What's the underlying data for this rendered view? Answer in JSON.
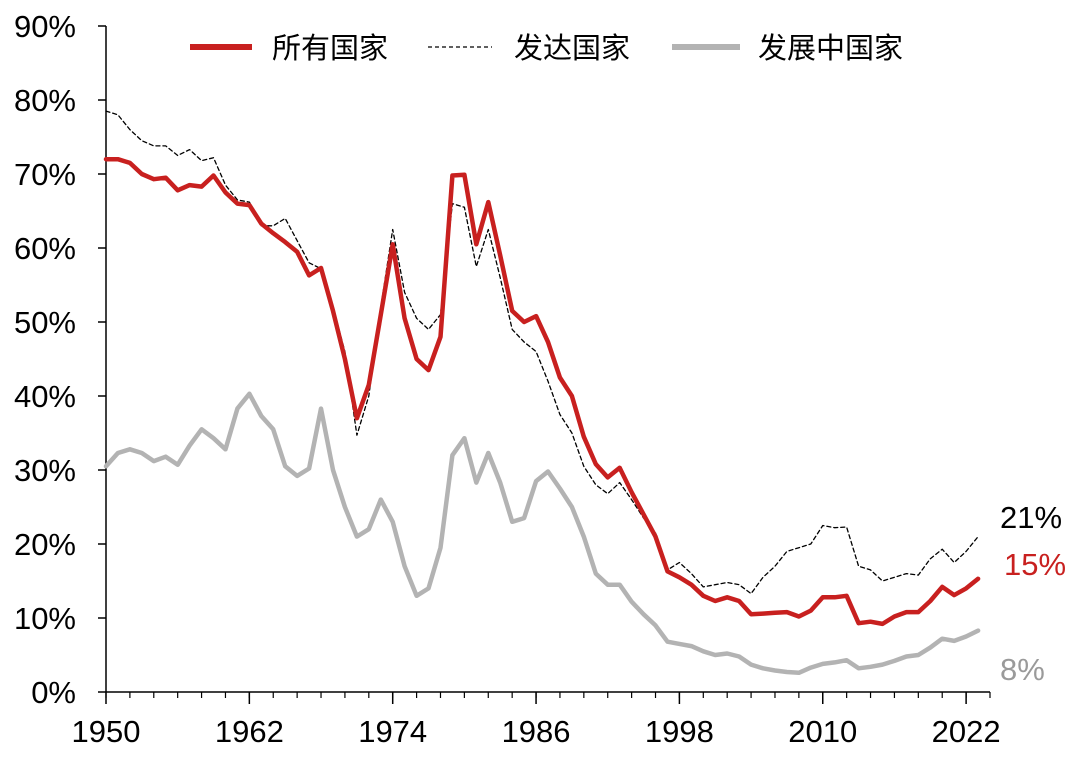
{
  "chart_data": {
    "type": "line",
    "title": "",
    "xlabel": "",
    "ylabel": "",
    "xlim": [
      1950,
      2024
    ],
    "ylim": [
      0,
      90
    ],
    "grid": false,
    "legend_position": "top",
    "y_ticks": [
      "0%",
      "10%",
      "20%",
      "30%",
      "40%",
      "50%",
      "60%",
      "70%",
      "80%",
      "90%"
    ],
    "x_ticks": [
      "1950",
      "1962",
      "1974",
      "1986",
      "1998",
      "2010",
      "2022"
    ],
    "x": [
      1950,
      1951,
      1952,
      1953,
      1954,
      1955,
      1956,
      1957,
      1958,
      1959,
      1960,
      1961,
      1962,
      1963,
      1964,
      1965,
      1966,
      1967,
      1968,
      1969,
      1970,
      1971,
      1972,
      1973,
      1974,
      1975,
      1976,
      1977,
      1978,
      1979,
      1980,
      1981,
      1982,
      1983,
      1984,
      1985,
      1986,
      1987,
      1988,
      1989,
      1990,
      1991,
      1992,
      1993,
      1994,
      1995,
      1996,
      1997,
      1998,
      1999,
      2000,
      2001,
      2002,
      2003,
      2004,
      2005,
      2006,
      2007,
      2008,
      2009,
      2010,
      2011,
      2012,
      2013,
      2014,
      2015,
      2016,
      2017,
      2018,
      2019,
      2020,
      2021,
      2022,
      2023
    ],
    "series": [
      {
        "name": "所有国家",
        "color": "#c8201f",
        "style": "solid-thick",
        "values": [
          72,
          72,
          71.5,
          70,
          69.3,
          69.5,
          67.8,
          68.5,
          68.3,
          69.8,
          67.5,
          66,
          65.8,
          63.3,
          62,
          60.8,
          59.5,
          56.3,
          57.3,
          51.5,
          45,
          37,
          41.5,
          51,
          60.5,
          50.5,
          45,
          43.5,
          48,
          69.8,
          69.9,
          60.5,
          66.2,
          59,
          51.5,
          50,
          50.8,
          47.3,
          42.5,
          40,
          34.5,
          30.8,
          29,
          30.3,
          27,
          24,
          21,
          16.3,
          15.5,
          14.5,
          13,
          12.3,
          12.8,
          12.3,
          10.5,
          10.6,
          10.7,
          10.8,
          10.2,
          11,
          12.8,
          12.8,
          13,
          9.3,
          9.5,
          9.2,
          10.2,
          10.8,
          10.8,
          12.3,
          14.2,
          13.1,
          14,
          15.3
        ]
      },
      {
        "name": "发达国家",
        "color": "#000000",
        "style": "dashed-thin",
        "values": [
          78.5,
          78,
          76,
          74.5,
          73.8,
          73.8,
          72.5,
          73.3,
          71.8,
          72.2,
          68.5,
          66.5,
          66.2,
          63,
          63,
          64,
          61,
          58,
          57.2,
          52,
          46,
          34.7,
          40,
          52,
          62.5,
          54,
          50.5,
          49,
          51,
          66,
          65.5,
          57.5,
          62.5,
          56,
          49,
          47.3,
          46,
          42,
          37.5,
          35,
          30.5,
          28,
          26.8,
          28.3,
          26,
          23.5,
          21.5,
          16.5,
          17.5,
          16,
          14.2,
          14.5,
          14.8,
          14.5,
          13.3,
          15.5,
          17,
          19,
          19.5,
          20,
          22.5,
          22.2,
          22.3,
          17,
          16.5,
          15,
          15.5,
          16,
          15.8,
          18,
          19.3,
          17.5,
          19,
          21
        ]
      },
      {
        "name": "发展中国家",
        "color": "#b3b3b3",
        "style": "solid-thick",
        "values": [
          30.5,
          32.3,
          32.8,
          32.3,
          31.2,
          31.8,
          30.7,
          33.3,
          35.5,
          34.3,
          32.8,
          38.3,
          40.3,
          37.3,
          35.5,
          30.5,
          29.2,
          30.2,
          38.3,
          30,
          25,
          21,
          22,
          26,
          23,
          17,
          13,
          14,
          19.5,
          32,
          34.3,
          28.3,
          32.3,
          28.3,
          23,
          23.5,
          28.5,
          29.8,
          27.5,
          25,
          21,
          16,
          14.5,
          14.5,
          12.2,
          10.5,
          9,
          6.8,
          6.5,
          6.2,
          5.5,
          5,
          5.2,
          4.8,
          3.7,
          3.2,
          2.9,
          2.7,
          2.6,
          3.3,
          3.8,
          4,
          4.3,
          3.2,
          3.4,
          3.7,
          4.2,
          4.8,
          5,
          6,
          7.2,
          6.9,
          7.5,
          8.3
        ]
      }
    ],
    "end_labels": [
      {
        "text": "21%",
        "color": "#000000"
      },
      {
        "text": "15%",
        "color": "#c8201f"
      },
      {
        "text": "8%",
        "color": "#9a9a9a"
      }
    ]
  }
}
